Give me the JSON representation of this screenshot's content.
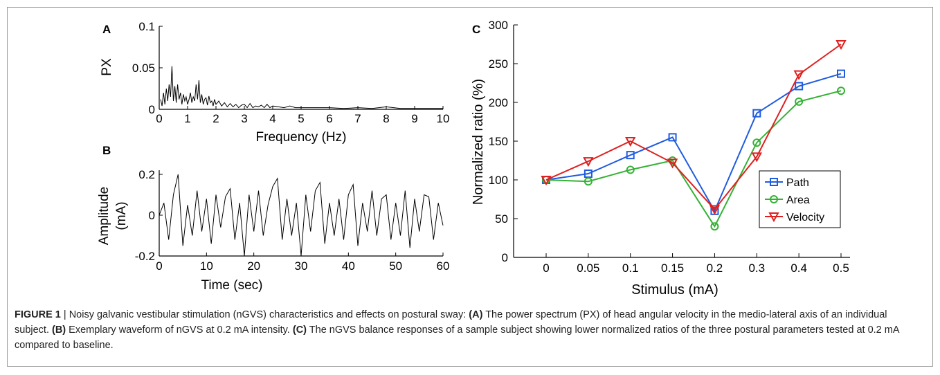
{
  "panels": {
    "A": {
      "letter": "A",
      "ylabel": "PX",
      "xlabel": "Frequency (Hz)",
      "xticks": [
        "0",
        "1",
        "2",
        "3",
        "4",
        "5",
        "6",
        "7",
        "8",
        "9",
        "10"
      ],
      "yticks": [
        "0",
        "0.05",
        "0.1"
      ]
    },
    "B": {
      "letter": "B",
      "ylabel_line1": "Amplitude",
      "ylabel_line2": "(mA)",
      "xlabel": "Time (sec)",
      "xticks": [
        "0",
        "10",
        "20",
        "30",
        "40",
        "50",
        "60"
      ],
      "yticks": [
        "-0.2",
        "0",
        "0.2"
      ]
    },
    "C": {
      "letter": "C",
      "ylabel": "Normalized ratio (%)",
      "xlabel": "Stimulus (mA)",
      "xticks": [
        "0",
        "0.05",
        "0.1",
        "0.15",
        "0.2",
        "0.3",
        "0.4",
        "0.5"
      ],
      "yticks": [
        "0",
        "50",
        "100",
        "150",
        "200",
        "250",
        "300"
      ]
    }
  },
  "chart_data": [
    {
      "type": "line",
      "panel": "A",
      "xlabel": "Frequency (Hz)",
      "ylabel": "PX",
      "xlim": [
        0,
        10
      ],
      "ylim": [
        0,
        0.1
      ],
      "series": [
        {
          "x": [
            0.05,
            0.1,
            0.15,
            0.2,
            0.25,
            0.3,
            0.35,
            0.4,
            0.45,
            0.5,
            0.55,
            0.6,
            0.65,
            0.7,
            0.75,
            0.8,
            0.85,
            0.9,
            0.95,
            1.0,
            1.05,
            1.1,
            1.15,
            1.2,
            1.25,
            1.3,
            1.35,
            1.4,
            1.45,
            1.5,
            1.55,
            1.6,
            1.65,
            1.7,
            1.75,
            1.8,
            1.85,
            1.9,
            1.95,
            2.0,
            2.1,
            2.2,
            2.3,
            2.4,
            2.5,
            2.6,
            2.7,
            2.8,
            2.9,
            3.0,
            3.1,
            3.2,
            3.3,
            3.4,
            3.5,
            3.6,
            3.7,
            3.8,
            3.9,
            4.0,
            4.2,
            4.4,
            4.6,
            4.8,
            5.0,
            5.5,
            6.0,
            6.5,
            7.0,
            7.5,
            8.0,
            8.5,
            9.0,
            9.5,
            10.0
          ],
          "y": [
            0.012,
            0.004,
            0.02,
            0.006,
            0.025,
            0.01,
            0.03,
            0.015,
            0.052,
            0.01,
            0.028,
            0.008,
            0.03,
            0.012,
            0.02,
            0.006,
            0.018,
            0.01,
            0.015,
            0.006,
            0.012,
            0.02,
            0.008,
            0.015,
            0.01,
            0.03,
            0.012,
            0.035,
            0.008,
            0.018,
            0.006,
            0.012,
            0.014,
            0.005,
            0.016,
            0.008,
            0.01,
            0.004,
            0.012,
            0.006,
            0.01,
            0.004,
            0.008,
            0.003,
            0.007,
            0.003,
            0.006,
            0.002,
            0.005,
            0.006,
            0.002,
            0.007,
            0.002,
            0.004,
            0.003,
            0.005,
            0.002,
            0.006,
            0.002,
            0.004,
            0.003,
            0.002,
            0.004,
            0.002,
            0.002,
            0.002,
            0.002,
            0.001,
            0.002,
            0.001,
            0.003,
            0.001,
            0.001,
            0.001,
            0.001
          ]
        }
      ]
    },
    {
      "type": "line",
      "panel": "B",
      "xlabel": "Time (sec)",
      "ylabel": "Amplitude (mA)",
      "xlim": [
        0,
        60
      ],
      "ylim": [
        -0.2,
        0.2
      ],
      "series": [
        {
          "x": [
            0,
            1,
            2,
            3,
            4,
            5,
            6,
            7,
            8,
            9,
            10,
            11,
            12,
            13,
            14,
            15,
            16,
            17,
            18,
            19,
            20,
            21,
            22,
            23,
            24,
            25,
            26,
            27,
            28,
            29,
            30,
            31,
            32,
            33,
            34,
            35,
            36,
            37,
            38,
            39,
            40,
            41,
            42,
            43,
            44,
            45,
            46,
            47,
            48,
            49,
            50,
            51,
            52,
            53,
            54,
            55,
            56,
            57,
            58,
            59,
            60
          ],
          "y": [
            0.0,
            0.06,
            -0.12,
            0.1,
            0.2,
            -0.15,
            0.05,
            -0.1,
            0.12,
            -0.08,
            0.08,
            -0.14,
            0.1,
            -0.06,
            0.09,
            0.13,
            -0.12,
            0.06,
            -0.2,
            0.1,
            -0.08,
            0.12,
            -0.1,
            0.05,
            0.14,
            0.18,
            -0.12,
            0.08,
            -0.1,
            0.06,
            -0.2,
            0.1,
            -0.08,
            0.12,
            0.16,
            -0.14,
            0.06,
            -0.1,
            0.08,
            -0.12,
            0.1,
            0.15,
            -0.15,
            0.06,
            -0.08,
            0.12,
            -0.1,
            0.08,
            0.1,
            -0.12,
            0.06,
            -0.1,
            0.12,
            -0.16,
            0.08,
            -0.08,
            0.1,
            0.09,
            -0.12,
            0.06,
            -0.05
          ]
        }
      ]
    },
    {
      "type": "line",
      "panel": "C",
      "xlabel": "Stimulus (mA)",
      "ylabel": "Normalized ratio (%)",
      "categories": [
        "0",
        "0.05",
        "0.1",
        "0.15",
        "0.2",
        "0.3",
        "0.4",
        "0.5"
      ],
      "ylim": [
        0,
        300
      ],
      "legend": "right",
      "series": [
        {
          "name": "Path",
          "color": "#1f5be0",
          "marker": "square",
          "values": [
            100,
            108,
            132,
            155,
            60,
            186,
            221,
            237
          ]
        },
        {
          "name": "Area",
          "color": "#33b233",
          "marker": "circle",
          "values": [
            100,
            98,
            113,
            125,
            40,
            148,
            201,
            215
          ]
        },
        {
          "name": "Velocity",
          "color": "#e01f1f",
          "marker": "triangle-down",
          "values": [
            100,
            124,
            150,
            122,
            62,
            130,
            236,
            275
          ]
        }
      ]
    }
  ],
  "caption": {
    "figure_label": "FIGURE 1",
    "separator": " | ",
    "intro": "Noisy galvanic vestibular stimulation (nGVS) characteristics and effects on postural sway: ",
    "a_tag": "(A)",
    "a_text": " The power spectrum (PX) of head angular velocity in the medio-lateral axis of an individual subject. ",
    "b_tag": "(B)",
    "b_text": " Exemplary waveform of nGVS at 0.2 mA intensity. ",
    "c_tag": "(C)",
    "c_text": " The nGVS balance responses of a sample subject showing lower normalized ratios of the three postural parameters tested at 0.2 mA compared to baseline."
  }
}
